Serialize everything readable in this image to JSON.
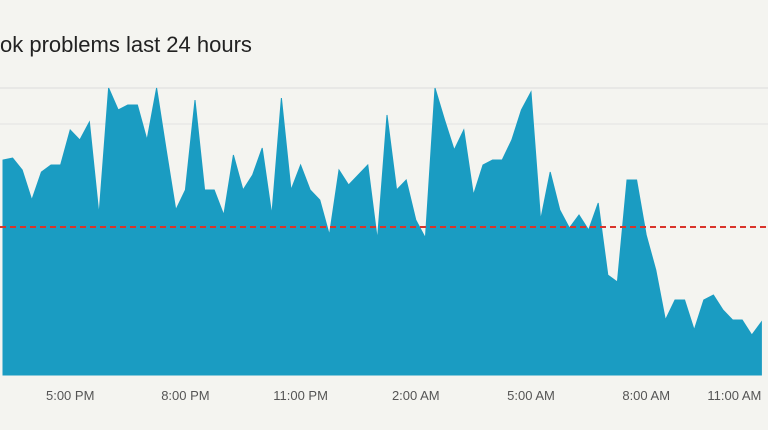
{
  "chart_data": {
    "type": "area",
    "title": "ok problems last 24 hours",
    "categories": [
      null,
      null,
      null,
      null,
      null,
      null,
      null,
      "5:00 PM",
      null,
      null,
      null,
      null,
      null,
      null,
      null,
      null,
      null,
      null,
      null,
      "8:00 PM",
      null,
      null,
      null,
      null,
      null,
      null,
      null,
      null,
      null,
      null,
      null,
      "11:00 PM",
      null,
      null,
      null,
      null,
      null,
      null,
      null,
      null,
      null,
      null,
      null,
      "2:00 AM",
      null,
      null,
      null,
      null,
      null,
      null,
      null,
      null,
      null,
      null,
      null,
      "5:00 AM",
      null,
      null,
      null,
      null,
      null,
      null,
      null,
      null,
      null,
      null,
      null,
      "8:00 AM",
      null,
      null,
      null,
      null,
      null,
      null,
      null,
      null,
      null,
      null,
      null,
      "11:00 AM"
    ],
    "values": [
      215,
      217,
      205,
      175,
      203,
      210,
      210,
      245,
      235,
      253,
      160,
      287,
      265,
      270,
      270,
      235,
      287,
      225,
      165,
      185,
      275,
      185,
      185,
      160,
      220,
      185,
      200,
      227,
      160,
      277,
      185,
      210,
      185,
      175,
      140,
      205,
      190,
      200,
      210,
      135,
      260,
      185,
      195,
      155,
      137,
      287,
      255,
      225,
      245,
      180,
      210,
      215,
      215,
      235,
      265,
      283,
      155,
      203,
      165,
      147,
      160,
      145,
      172,
      100,
      93,
      195,
      195,
      140,
      105,
      55,
      75,
      75,
      45,
      75,
      80,
      65,
      55,
      55,
      40,
      53
    ],
    "color": "#1a9cc2",
    "baseline": 148,
    "baseline_color": "#d9342b",
    "ylim": [
      0,
      290
    ]
  }
}
